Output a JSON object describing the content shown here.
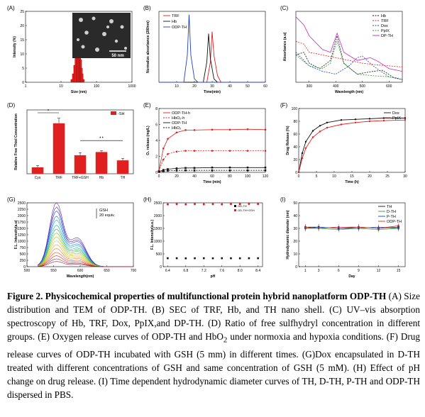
{
  "figure": {
    "caption_title": "Figure 2. Physicochemical properties of multifunctional protein hybrid nanoplatform ODP-TH",
    "caption_body_1": " (A) Size distribution and TEM of ODP-TH. (B) SEC of TRF, Hb, and TH nano shell. (C) UV–vis absorption spectroscopy of Hb, TRF, Dox, PpIX,and DP-TH. (D) Ratio of free sulfhydryl concentration in different groups. (E) Oxygen release curves of ODP-TH and HbO",
    "caption_sub": "2",
    "caption_body_2": " under normoxia and hypoxia conditions. (F) Drug release curves of ODP-TH incubated with GSH (5 mm) in different times. (G)Dox encapsulated in D-TH treated with different concentrations of GSH and same concentration of GSH (5 mM). (H) Effect of pH change on drug release. (I) Time dependent hydrodynamic diameter curves of TH, D-TH, P-TH and ODP-TH dispersed in PBS."
  },
  "chart_data": [
    {
      "panel": "(A)",
      "type": "bar",
      "xlabel": "Size (nm)",
      "ylabel": "Intensity (%)",
      "xscale": "log",
      "xlim": [
        1,
        1000
      ],
      "ylim": [
        0,
        25
      ],
      "xticks": [
        "1",
        "10",
        "100",
        "1000"
      ],
      "yticks": [
        "0",
        "5",
        "10",
        "15",
        "20",
        "25"
      ],
      "categories": [
        20,
        22,
        24,
        26,
        28,
        30,
        32,
        34,
        36,
        38,
        40,
        43
      ],
      "values": [
        1,
        3,
        6,
        9,
        12,
        14,
        13,
        11,
        8,
        5,
        3,
        1
      ],
      "inset": {
        "type": "TEM image",
        "scale_bar": "50 nm"
      },
      "colors": {
        "bars": "#e02020"
      }
    },
    {
      "panel": "(B)",
      "type": "line",
      "xlabel": "Time(min)",
      "ylabel": "Normalize absorbance (280nm)",
      "xlim": [
        0,
        60
      ],
      "xticks": [
        "10",
        "20",
        "30",
        "40",
        "50",
        "60"
      ],
      "series": [
        {
          "name": "TRF",
          "color": "#e02020",
          "x": [
            0,
            27,
            29,
            30,
            31,
            33,
            35,
            60
          ],
          "y": [
            0,
            0,
            0.3,
            0.75,
            0.4,
            0.1,
            0,
            0
          ]
        },
        {
          "name": "Hb",
          "color": "#111111",
          "x": [
            0,
            25,
            27,
            28,
            29,
            31,
            33,
            60
          ],
          "y": [
            0,
            0,
            0.3,
            0.72,
            0.35,
            0.05,
            0,
            0
          ]
        },
        {
          "name": "ODP-TH",
          "color": "#1f3fbf",
          "x": [
            0,
            14,
            16,
            17,
            18,
            20,
            22,
            60
          ],
          "y": [
            0,
            0,
            0.4,
            1.0,
            0.4,
            0.05,
            0,
            0
          ]
        }
      ]
    },
    {
      "panel": "(C)",
      "type": "line",
      "xlabel": "Wavelength (nm)",
      "ylabel": "Absorbance (a.u)",
      "xlim": [
        250,
        650
      ],
      "xticks": [
        "300",
        "400",
        "500",
        "600"
      ],
      "series": [
        {
          "name": "Hb",
          "color": "#111111",
          "style": "dashed",
          "x": [
            250,
            280,
            300,
            340,
            380,
            405,
            430,
            480,
            540,
            575,
            620,
            650
          ],
          "y": [
            0.5,
            0.55,
            0.35,
            0.25,
            0.4,
            0.85,
            0.35,
            0.15,
            0.2,
            0.22,
            0.08,
            0.05
          ]
        },
        {
          "name": "TRF",
          "color": "#e02020",
          "style": "dashed",
          "x": [
            250,
            280,
            300,
            350,
            400,
            450,
            500,
            550,
            600,
            650
          ],
          "y": [
            0.75,
            0.7,
            0.55,
            0.5,
            0.45,
            0.4,
            0.35,
            0.32,
            0.3,
            0.28
          ]
        },
        {
          "name": "Dox",
          "color": "#1f3fbf",
          "style": "dashed",
          "x": [
            250,
            300,
            350,
            400,
            450,
            480,
            500,
            540,
            600,
            650
          ],
          "y": [
            0.55,
            0.3,
            0.2,
            0.15,
            0.3,
            0.45,
            0.48,
            0.3,
            0.1,
            0.05
          ]
        },
        {
          "name": "PpIX",
          "color": "#2e9e2e",
          "style": "dashed",
          "x": [
            250,
            300,
            350,
            380,
            405,
            430,
            480,
            540,
            600,
            630,
            650
          ],
          "y": [
            0.5,
            0.3,
            0.25,
            0.35,
            0.75,
            0.35,
            0.15,
            0.12,
            0.1,
            0.08,
            0.05
          ]
        },
        {
          "name": "DP-TH",
          "color": "#d020c0",
          "style": "solid",
          "x": [
            250,
            280,
            300,
            350,
            380,
            405,
            430,
            480,
            530,
            560,
            600,
            650
          ],
          "y": [
            1.2,
            1.05,
            0.85,
            0.6,
            0.55,
            0.9,
            0.55,
            0.4,
            0.45,
            0.38,
            0.25,
            0.2
          ]
        }
      ]
    },
    {
      "panel": "(D)",
      "type": "bar",
      "ylabel": "Relative Free Thiol Concentration",
      "categories": [
        "Cys",
        "TRF",
        "TRF+GSH",
        "Hb",
        "TH"
      ],
      "values": [
        1.0,
        7.9,
        2.9,
        3.4,
        2.1
      ],
      "errors": [
        0.3,
        0.8,
        0.4,
        0.2,
        0.3
      ],
      "ylim": [
        0,
        10
      ],
      "legend": "-SH",
      "significance": [
        "*",
        "* *"
      ],
      "colors": {
        "bars": "#e02020"
      }
    },
    {
      "panel": "(E)",
      "type": "line",
      "xlabel": "Time (min)",
      "ylabel": "O₂ release (mg/L)",
      "xlim": [
        0,
        120
      ],
      "ylim": [
        0,
        8
      ],
      "xticks": [
        "0",
        "20",
        "40",
        "60",
        "80",
        "100",
        "120"
      ],
      "yticks": [
        "0",
        "2",
        "4",
        "6",
        "8"
      ],
      "series": [
        {
          "name": "ODP-TH-h",
          "color": "#e02020",
          "marker": "circle",
          "x": [
            0,
            5,
            10,
            20,
            30,
            40,
            60,
            80,
            100,
            120
          ],
          "y": [
            0.2,
            3.0,
            4.2,
            5.0,
            5.3,
            5.3,
            5.35,
            5.35,
            5.4,
            5.35
          ]
        },
        {
          "name": "HbO₂-h",
          "color": "#e02020",
          "marker": "circle-dashed",
          "x": [
            0,
            5,
            10,
            20,
            30,
            40,
            60,
            80,
            100,
            120
          ],
          "y": [
            0.2,
            1.6,
            2.3,
            2.6,
            2.7,
            2.7,
            2.7,
            2.7,
            2.7,
            2.7
          ]
        },
        {
          "name": "ODP-TH",
          "color": "#111111",
          "marker": "square",
          "x": [
            0,
            5,
            10,
            20,
            30,
            40,
            60,
            80,
            100,
            120
          ],
          "y": [
            0.1,
            0.3,
            0.4,
            0.5,
            0.55,
            0.55,
            0.6,
            0.6,
            0.6,
            0.6
          ]
        },
        {
          "name": "HbO₂",
          "color": "#111111",
          "marker": "square-dashed",
          "x": [
            0,
            5,
            10,
            20,
            30,
            40,
            60,
            80,
            100,
            120
          ],
          "y": [
            0.05,
            0.15,
            0.2,
            0.25,
            0.25,
            0.25,
            0.25,
            0.25,
            0.25,
            0.25
          ]
        }
      ]
    },
    {
      "panel": "(F)",
      "type": "line",
      "xlabel": "Time (h)",
      "ylabel": "Drug Release (%)",
      "xlim": [
        0,
        30
      ],
      "ylim": [
        0,
        100
      ],
      "xticks": [
        "0",
        "5",
        "10",
        "15",
        "20",
        "25",
        "30"
      ],
      "yticks": [
        "0",
        "20",
        "40",
        "60",
        "80",
        "100"
      ],
      "series": [
        {
          "name": "Dox",
          "color": "#111111",
          "x": [
            0,
            1,
            2,
            4,
            6,
            8,
            12,
            16,
            20,
            24,
            30
          ],
          "y": [
            0,
            30,
            48,
            65,
            73,
            78,
            82,
            83,
            84,
            85,
            85
          ]
        },
        {
          "name": "PpIX",
          "color": "#e02020",
          "x": [
            0,
            1,
            2,
            4,
            6,
            8,
            12,
            16,
            20,
            24,
            30
          ],
          "y": [
            0,
            22,
            38,
            55,
            64,
            70,
            75,
            78,
            80,
            81,
            82
          ]
        }
      ]
    },
    {
      "panel": "(G)",
      "type": "line",
      "xlabel": "Wavelength(nm)",
      "ylabel": "F.L. Intensity(a.u)",
      "xlim": [
        500,
        700
      ],
      "ylim": [
        0,
        2500
      ],
      "xticks": [
        "500",
        "550",
        "600",
        "650",
        "700"
      ],
      "yticks": [
        "0",
        "250",
        "500",
        "750",
        "1000",
        "1250",
        "1500",
        "1750",
        "2000",
        "2250",
        "2500"
      ],
      "annotation": "GSH",
      "annotation_2": "20 equiv.",
      "family_peaks": [
        2480,
        2300,
        2150,
        1950,
        1800,
        1600,
        1450,
        1300,
        1150,
        1000,
        850,
        700,
        550,
        420,
        300,
        200
      ],
      "family_colors": [
        "#7a1fa2",
        "#4a2fb8",
        "#1f47c8",
        "#1e6fd8",
        "#1aa0d0",
        "#17b0a0",
        "#2cae5a",
        "#6bbf2a",
        "#a8c51d",
        "#d6c21a",
        "#e8a31a",
        "#ea7a1a",
        "#e04e1a",
        "#cf2c22",
        "#b01c3a",
        "#8a1a4a"
      ]
    },
    {
      "panel": "(H)",
      "type": "scatter",
      "xlabel": "pH",
      "ylabel": "F.L. Intensity(a.u.)",
      "xlim": [
        6.3,
        8.5
      ],
      "ylim": [
        0,
        2500
      ],
      "xticks": [
        "6.4",
        "6.8",
        "7.2",
        "7.6",
        "8.0",
        "8.4"
      ],
      "yticks": [
        "0",
        "500",
        "1000",
        "1500",
        "2000",
        "2500"
      ],
      "series": [
        {
          "name": "OD-TH",
          "color": "#111111",
          "x": [
            6.4,
            6.6,
            6.8,
            7.0,
            7.2,
            7.4,
            7.6,
            7.8,
            8.0,
            8.2,
            8.4
          ],
          "y": [
            330,
            330,
            325,
            330,
            330,
            328,
            330,
            330,
            328,
            330,
            330
          ]
        },
        {
          "name": "OD-TH+GSH",
          "color": "#e02020",
          "x": [
            6.4,
            6.6,
            6.8,
            7.0,
            7.2,
            7.4,
            7.6,
            7.8,
            8.0,
            8.2,
            8.4
          ],
          "y": [
            2440,
            2450,
            2440,
            2450,
            2445,
            2450,
            2440,
            2455,
            2450,
            2460,
            2455
          ]
        }
      ]
    },
    {
      "panel": "(I)",
      "type": "line",
      "xlabel": "Day",
      "ylabel": "Hydrodynamic diameter (nm)",
      "xlim": [
        0,
        16
      ],
      "ylim": [
        0,
        50
      ],
      "xticks": [
        "1",
        "3",
        "6",
        "9",
        "12",
        "15"
      ],
      "yticks": [
        "0",
        "10",
        "20",
        "30",
        "40",
        "50"
      ],
      "series": [
        {
          "name": "TH",
          "color": "#111111",
          "marker": "square",
          "x": [
            1,
            3,
            6,
            9,
            12,
            15
          ],
          "y": [
            31,
            31,
            30,
            31,
            30,
            31
          ]
        },
        {
          "name": "D-TH",
          "color": "#2e9e2e",
          "marker": "circle",
          "x": [
            1,
            3,
            6,
            9,
            12,
            15
          ],
          "y": [
            30,
            30,
            29,
            30,
            29,
            30
          ]
        },
        {
          "name": "P-TH",
          "color": "#1f3fbf",
          "marker": "triangle",
          "x": [
            1,
            3,
            6,
            9,
            12,
            15
          ],
          "y": [
            30,
            31,
            30,
            30,
            31,
            30
          ]
        },
        {
          "name": "ODP-TH",
          "color": "#e02020",
          "marker": "triangle-down",
          "x": [
            1,
            3,
            6,
            9,
            12,
            15
          ],
          "y": [
            31,
            30,
            31,
            31,
            30,
            32
          ]
        }
      ]
    }
  ]
}
